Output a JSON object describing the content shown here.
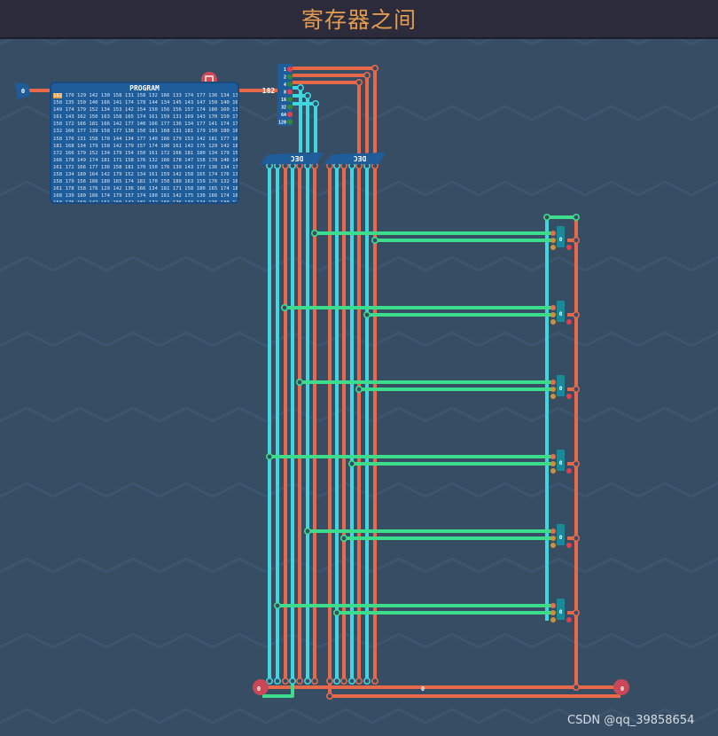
{
  "window": {
    "title": "寄存器之间"
  },
  "input_pin": {
    "value": "0"
  },
  "program": {
    "title": "PROGRAM",
    "selected": "182",
    "rows": [
      "170 129 142 130 158 131 158 132 166 133 174 177 136 134 139",
      "158 135 150 140 166 141 174 178 144 134 145 143 147 150 140 163",
      "149 174 179 152 134 153 142 154 150 156 156 157 174 180 160 136",
      "161 143 162 150 163 158 165 174 161 159 131 169 143 170 150 171",
      "158 172 166 181 166 142 177 140 166 177 136 134 177 141 174 175",
      "132 166 177 139 158 177 138 150 181 168 131 181 179 150 180 163",
      "158 176 131 158 178 144 134 177 140 166 179 153 142 181 177 168",
      "181 168 134 179 158 142 179 157 174 190 161 142 175 129 142 181",
      "172 166 179 152 134 179 154 150 161 172 166 181 180 134 179 158",
      "166 178 149 174 181 171 158 176 132 166 178 147 158 178 146 142",
      "161 172 166 177 136 158 181 170 150 176 139 143 177 136 134 177",
      "158 134 180 164 142 179 152 134 161 159 142 158 165 174 176 131",
      "158 179 156 166 180 165 174 181 170 150 180 163 159 176 132 166",
      "161 178 158 176 129 142 136 166 134 181 171 158 180 165 174 181",
      "168 139 180 166 174 179 157 174 180 161 142 175 130 166 174 164",
      "158 176 150 142 161 169 142 181 172 166 176 133 174 176 130 174"
    ]
  },
  "program_output": {
    "value": "182"
  },
  "splitter": {
    "bits": [
      "1",
      "2",
      "4",
      "8",
      "16",
      "32",
      "64",
      "128"
    ]
  },
  "decoders": [
    {
      "label": "DEC"
    },
    {
      "label": "DEC"
    }
  ],
  "registers": [
    {
      "value": "0"
    },
    {
      "value": "0"
    },
    {
      "value": "0"
    },
    {
      "value": "0"
    },
    {
      "value": "0"
    },
    {
      "value": "0"
    }
  ],
  "output_bus": {
    "value": "0"
  },
  "left_output": {
    "value": "0"
  },
  "right_output": {
    "value": "0"
  },
  "watermark": "CSDN @qq_39858654",
  "colors": {
    "orange_wire": "#e8694a",
    "cyan_wire": "#3fd6df",
    "green_wire": "#3ddc8a",
    "title": "#e39c4f",
    "background": "#364d64"
  }
}
